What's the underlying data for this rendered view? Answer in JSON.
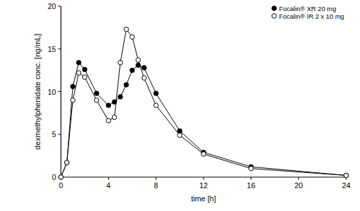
{
  "chart_data": {
    "type": "line",
    "x_label": "time [h]",
    "y_label": "dexmethylphenidate conc. [ng/mL]",
    "x": [
      0,
      0.5,
      1,
      1.5,
      2,
      3,
      4,
      4.5,
      5,
      5.5,
      6,
      6.5,
      7,
      8,
      10,
      12,
      16,
      24
    ],
    "series": [
      {
        "name": "Focalin® XR 20 mg",
        "color": "#000000",
        "marker": "filled-circle",
        "values": [
          0,
          1.7,
          10.6,
          13.4,
          12.6,
          9.8,
          8.4,
          8.8,
          9.4,
          10.8,
          12.5,
          13.1,
          12.8,
          9.8,
          5.4,
          2.9,
          1.2,
          0.2
        ]
      },
      {
        "name": "Focalin® IR 2 x 10 mg",
        "color": "#000000",
        "marker": "open-circle",
        "values": [
          0,
          1.7,
          9.0,
          12.2,
          11.7,
          9.0,
          6.6,
          7.0,
          13.4,
          17.3,
          16.4,
          13.7,
          11.6,
          8.4,
          4.9,
          2.7,
          1.0,
          0.2
        ]
      }
    ],
    "xlim": [
      0,
      24
    ],
    "xticks": [
      0,
      4,
      8,
      12,
      16,
      20,
      24
    ],
    "ylim": [
      0,
      20
    ],
    "yticks": [
      0,
      5,
      10,
      15,
      20
    ],
    "grid": false,
    "legend": "top-right"
  }
}
